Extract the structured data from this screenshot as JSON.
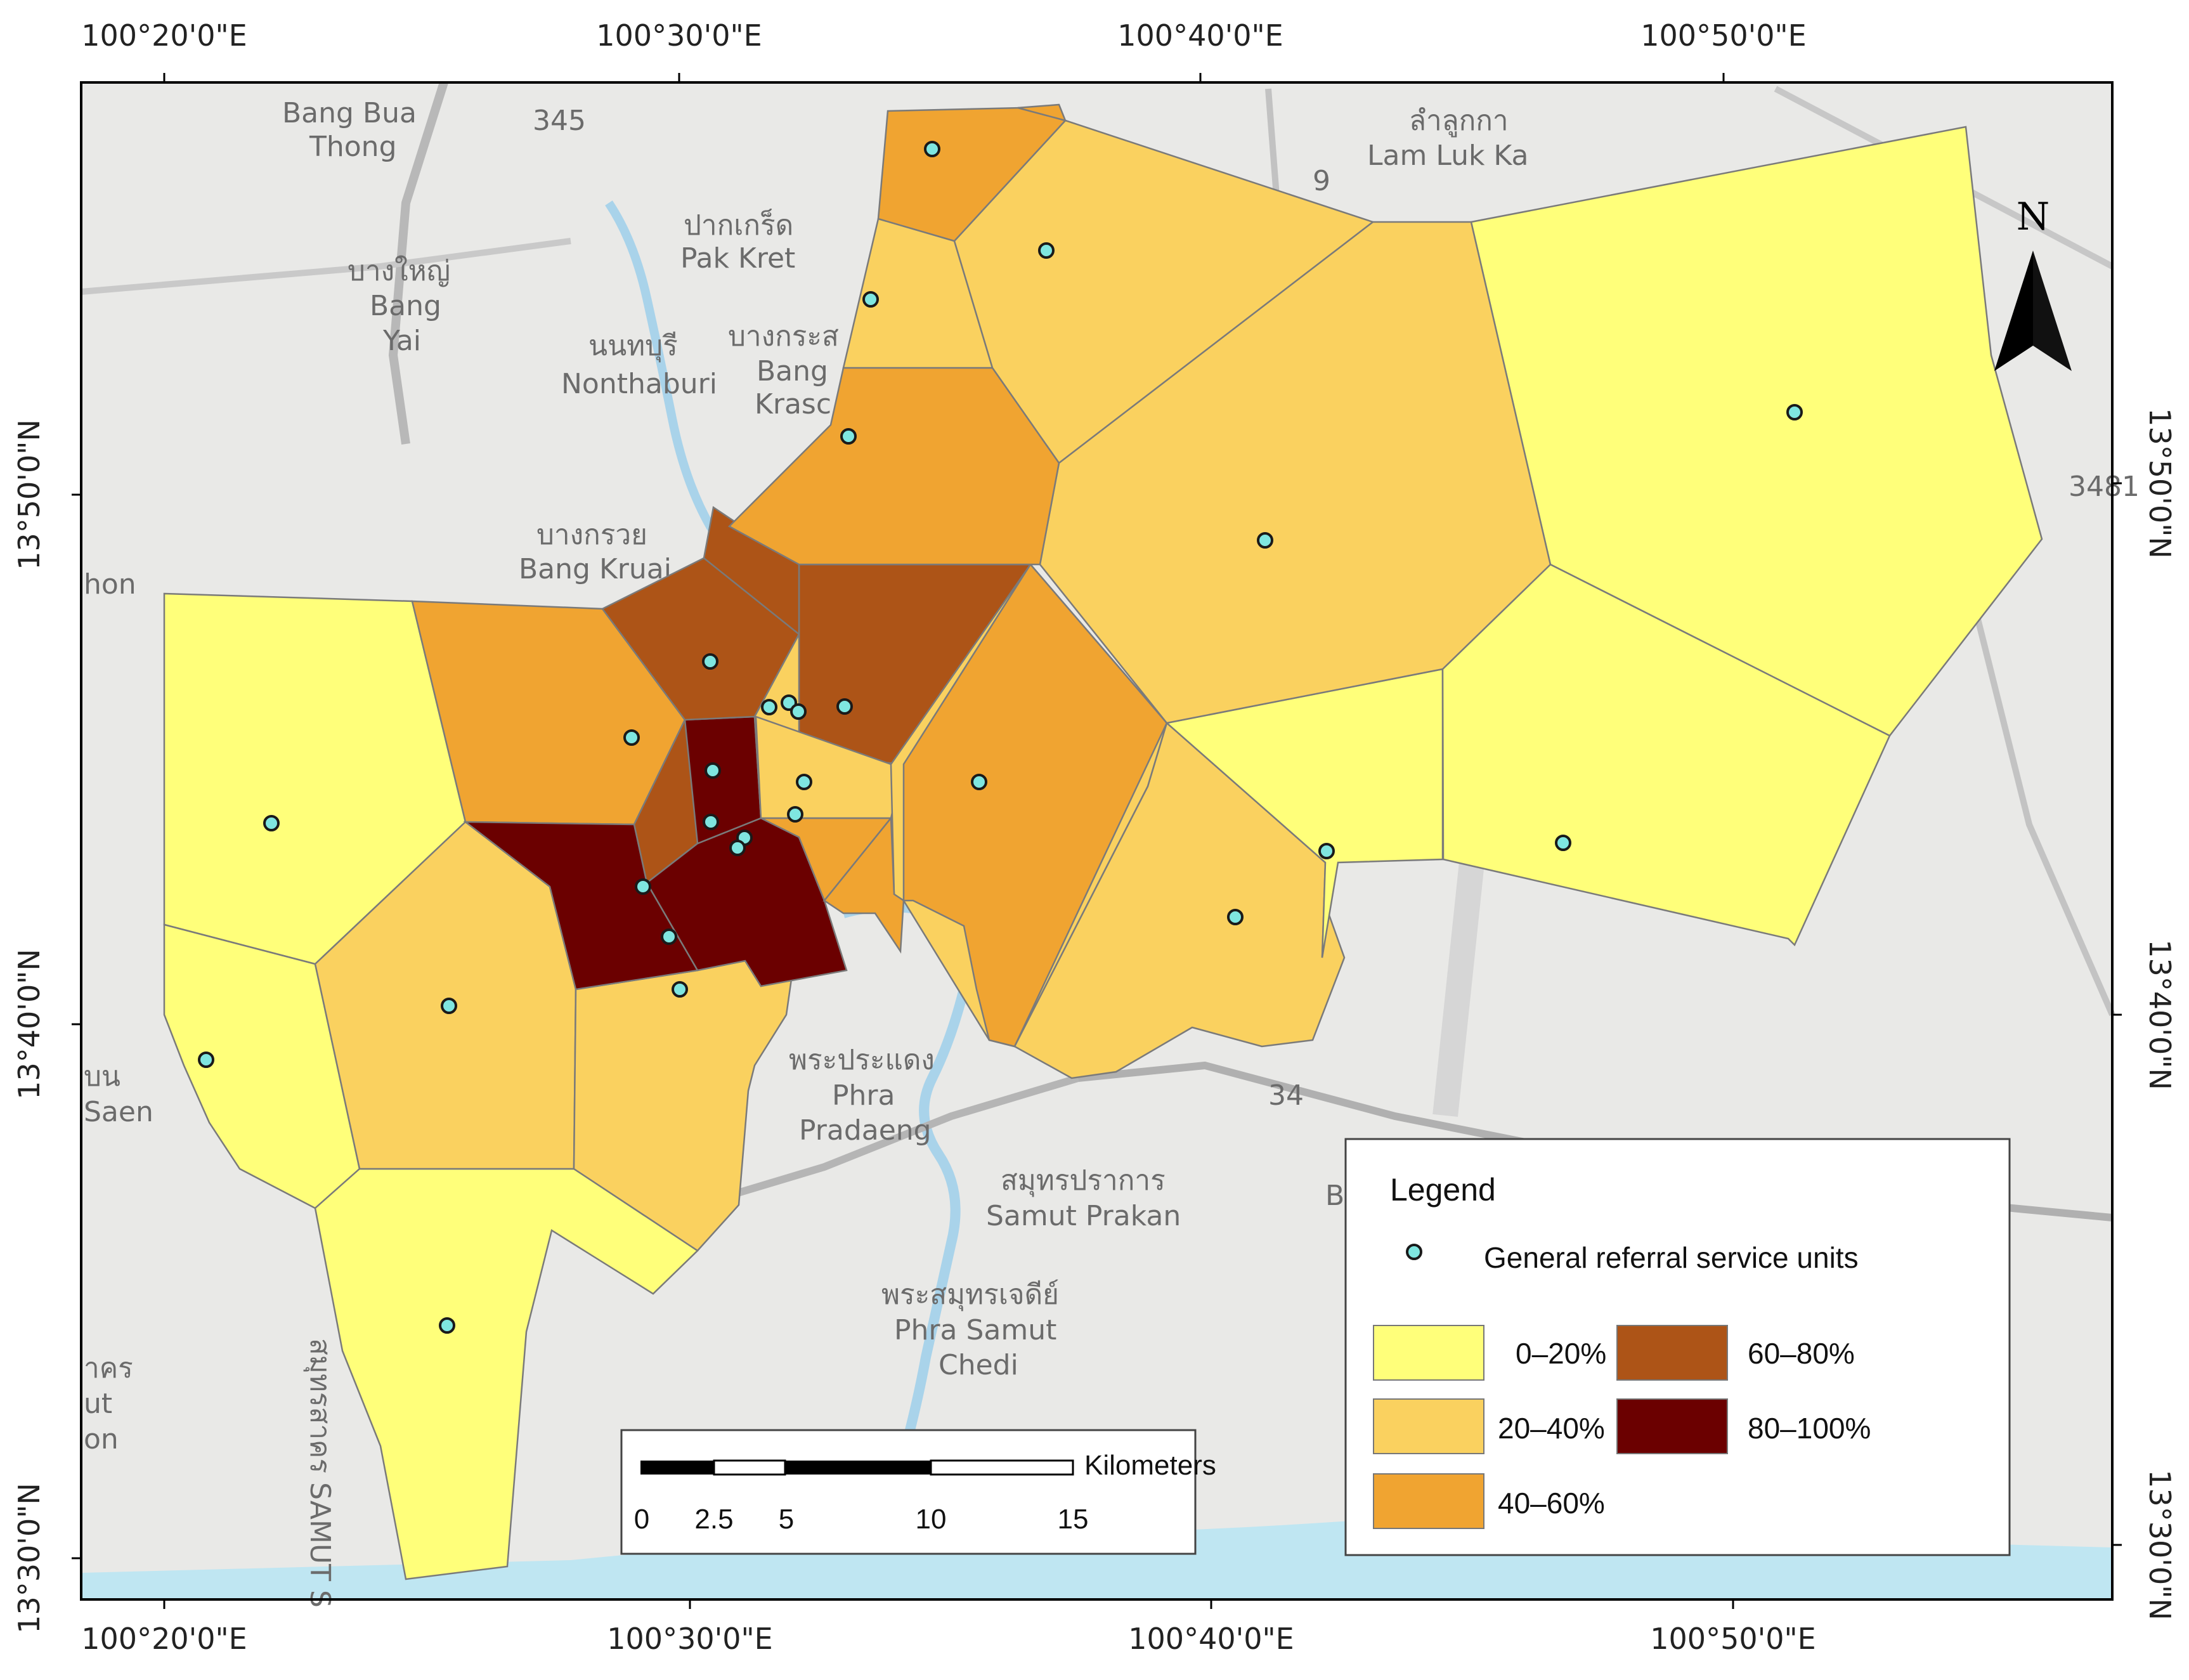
{
  "map": {
    "top_longitudes": [
      "100°20'0\"E",
      "100°30'0\"E",
      "100°40'0\"E",
      "100°50'0\"E"
    ],
    "bottom_longitudes": [
      "100°20'0\"E",
      "100°30'0\"E",
      "100°40'0\"E",
      "100°50'0\"E"
    ],
    "left_latitudes": [
      "13°50'0\"N",
      "13°40'0\"N",
      "13°30'0\"N"
    ],
    "right_latitudes": [
      "13°50'0\"N",
      "13°40'0\"N",
      "13°30'0\"N"
    ],
    "north_label": "N",
    "place_labels": [
      "Bang Bua",
      "Thong",
      "ปากเกร็ด",
      "Pak Kret",
      "บางใหญ่",
      "Bang",
      "Yai",
      "นนทบุรี",
      "Nonthaburi",
      "บางกระส",
      "Bang",
      "Krasc",
      "บางกรวย",
      "Bang Kruai",
      "ลำลูกกา",
      "Lam Luk Ka",
      "พระประแดง",
      "Phra",
      "Pradaeng",
      "สมุทรปราการ",
      "Samut Prakan",
      "พระสมุทรเจดีย์",
      "Phra Samut",
      "Chedi",
      "hon",
      "บน",
      "Saen",
      "าคร",
      "ut",
      "on",
      "สมุทรสาคร SAMUT S",
      "345",
      "9",
      "34",
      "3481",
      "B"
    ]
  },
  "zones": [
    {
      "class": "0-20%",
      "fill": "#ffff7a"
    },
    {
      "class": "20-40%",
      "fill": "#fad15f"
    },
    {
      "class": "40-60%",
      "fill": "#f0a431"
    },
    {
      "class": "60-80%",
      "fill": "#ad5417"
    },
    {
      "class": "80-100%",
      "fill": "#6b0000"
    }
  ],
  "legend": {
    "title": "Legend",
    "point_label": "General referral service units",
    "point_color": "#7fe6e0",
    "classes": [
      {
        "label": "0–20%",
        "color": "#ffff7a"
      },
      {
        "label": "20–40%",
        "color": "#fad15f"
      },
      {
        "label": "40–60%",
        "color": "#f0a431"
      },
      {
        "label": "60–80%",
        "color": "#ad5417"
      },
      {
        "label": "80–100%",
        "color": "#6b0000"
      }
    ]
  },
  "scale_bar": {
    "unit": "Kilometers",
    "ticks": [
      "0",
      "2.5",
      "5",
      "10",
      "15"
    ]
  }
}
